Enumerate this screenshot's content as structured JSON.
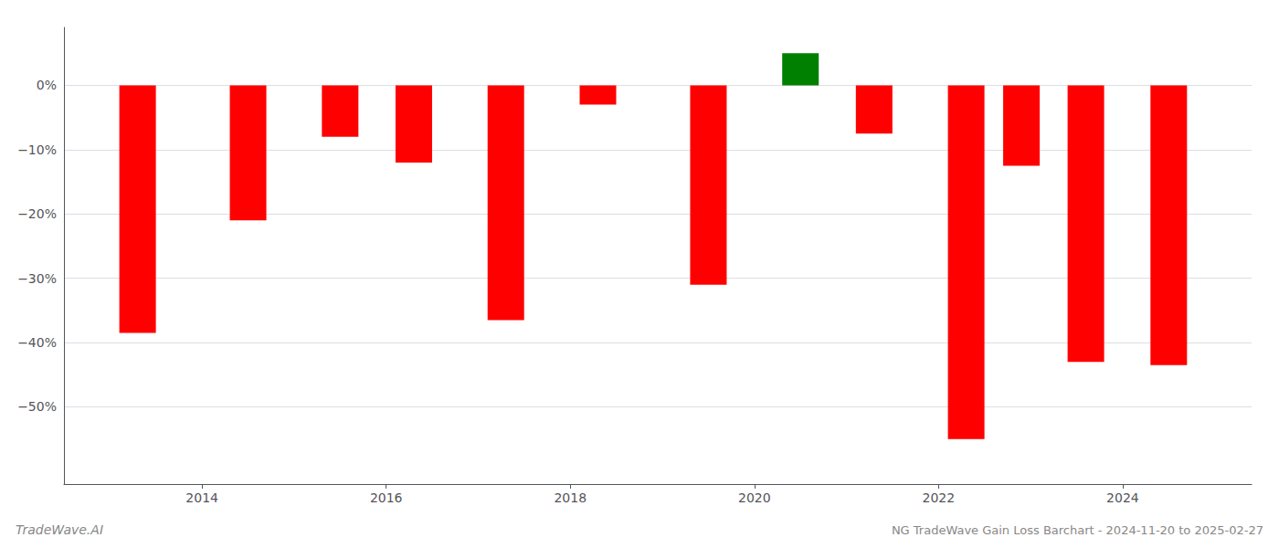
{
  "chart_data": {
    "type": "bar",
    "title": "NG TradeWave Gain Loss Barchart - 2024-11-20 to 2025-02-27",
    "annotations": [
      "TradeWave.AI"
    ],
    "x": [
      2013.3,
      2014.5,
      2015.5,
      2016.3,
      2017.3,
      2018.3,
      2019.5,
      2020.5,
      2021.3,
      2022.3,
      2022.9,
      2023.6,
      2024.5
    ],
    "values": [
      -38.5,
      -21.0,
      -8.0,
      -12.0,
      -36.5,
      -3.0,
      -31.0,
      5.0,
      -7.5,
      -55.0,
      -12.5,
      -43.0,
      -43.5
    ],
    "colors": [
      "#ff0000",
      "#ff0000",
      "#ff0000",
      "#ff0000",
      "#ff0000",
      "#ff0000",
      "#ff0000",
      "#008000",
      "#ff0000",
      "#ff0000",
      "#ff0000",
      "#ff0000",
      "#ff0000"
    ],
    "xlim": [
      2012.5,
      2025.4
    ],
    "ylim": [
      -62,
      9
    ],
    "xticks": [
      2014,
      2016,
      2018,
      2020,
      2022,
      2024
    ],
    "yticks": [
      {
        "value": 0,
        "label": "0%"
      },
      {
        "value": -10,
        "label": "−10%"
      },
      {
        "value": -20,
        "label": "−20%"
      },
      {
        "value": -30,
        "label": "−30%"
      },
      {
        "value": -40,
        "label": "−40%"
      },
      {
        "value": -50,
        "label": "−50%"
      }
    ],
    "grid": true
  }
}
